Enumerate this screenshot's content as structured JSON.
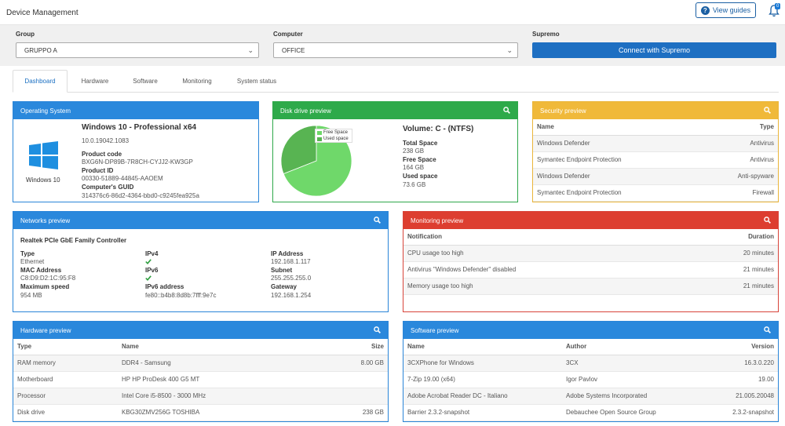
{
  "app": {
    "title": "Device Management",
    "guides_label": "View guides",
    "notification_count": "0"
  },
  "filters": {
    "group_label": "Group",
    "group_value": "GRUPPO A",
    "computer_label": "Computer",
    "computer_value": "OFFICE",
    "supremo_label": "Supremo",
    "supremo_button": "Connect with Supremo"
  },
  "tabs": [
    "Dashboard",
    "Hardware",
    "Software",
    "Monitoring",
    "System status"
  ],
  "os": {
    "title": "Operating System",
    "logo_label": "Windows 10",
    "name": "Windows 10 - Professional x64",
    "version": "10.0.19042.1083",
    "product_code_label": "Product code",
    "product_code": "BXG6N-DP89B-7R8CH-CYJJ2-KW3GP",
    "product_id_label": "Product ID",
    "product_id": "00330-51889-44845-AAOEM",
    "guid_label": "Computer's GUID",
    "guid": "314376c6-86d2-4364-bbd0-c9245fea925a"
  },
  "disk": {
    "title": "Disk drive preview",
    "volume": "Volume: C - (NTFS)",
    "total_label": "Total Space",
    "total": "238 GB",
    "free_label": "Free Space",
    "free": "164 GB",
    "used_label": "Used space",
    "used": "73.6 GB",
    "legend_free": "Free Space",
    "legend_used": "Used space",
    "color_free": "#6fd86a",
    "color_used": "#58b452"
  },
  "chart_data": {
    "type": "pie",
    "categories": [
      "Free Space",
      "Used space"
    ],
    "values": [
      164,
      73.6
    ],
    "legend": "top-right"
  },
  "security": {
    "title": "Security preview",
    "headers": [
      "Name",
      "Type"
    ],
    "rows": [
      [
        "Windows Defender",
        "Antivirus"
      ],
      [
        "Symantec Endpoint Protection",
        "Antivirus"
      ],
      [
        "Windows Defender",
        "Anti-spyware"
      ],
      [
        "Symantec Endpoint Protection",
        "Firewall"
      ]
    ]
  },
  "networks": {
    "title": "Networks preview",
    "adapter": "Realtek PCIe GbE Family Controller",
    "type_label": "Type",
    "type": "Ethernet",
    "mac_label": "MAC Address",
    "mac": "C8:D9:D2:1C:95:F8",
    "speed_label": "Maximum speed",
    "speed": "954 MB",
    "ipv4_label": "IPv4",
    "ipv6_label": "IPv6",
    "ipv6addr_label": "IPv6 address",
    "ipv6addr": "fe80::b4b8:8d8b:7fff:9e7c",
    "ip_label": "IP Address",
    "ip": "192.168.1.117",
    "subnet_label": "Subnet",
    "subnet": "255.255.255.0",
    "gateway_label": "Gateway",
    "gateway": "192.168.1.254",
    "check_color": "#2e9e3e"
  },
  "monitoring": {
    "title": "Monitoring preview",
    "headers": [
      "Notification",
      "Duration"
    ],
    "rows": [
      [
        "CPU usage too high",
        "20 minutes"
      ],
      [
        "Antivirus \"Windows Defender\" disabled",
        "21 minutes"
      ],
      [
        "Memory usage too high",
        "21 minutes"
      ]
    ]
  },
  "hardware": {
    "title": "Hardware preview",
    "headers": [
      "Type",
      "Name",
      "Size"
    ],
    "rows": [
      [
        "RAM memory",
        "DDR4 - Samsung",
        "8.00 GB"
      ],
      [
        "Motherboard",
        "HP HP ProDesk 400 G5 MT",
        ""
      ],
      [
        "Processor",
        "Intel Core i5-8500 - 3000 MHz",
        ""
      ],
      [
        "Disk drive",
        "KBG30ZMV256G TOSHIBA",
        "238 GB"
      ]
    ]
  },
  "software": {
    "title": "Software preview",
    "headers": [
      "Name",
      "Author",
      "Version"
    ],
    "rows": [
      [
        "3CXPhone for Windows",
        "3CX",
        "16.3.0.220"
      ],
      [
        "7-Zip 19.00 (x64)",
        "Igor Pavlov",
        "19.00"
      ],
      [
        "Adobe Acrobat Reader DC - Italiano",
        "Adobe Systems Incorporated",
        "21.005.20048"
      ],
      [
        "Barrier 2.3.2-snapshot",
        "Debauchee Open Source Group",
        "2.3.2-snapshot"
      ]
    ]
  }
}
